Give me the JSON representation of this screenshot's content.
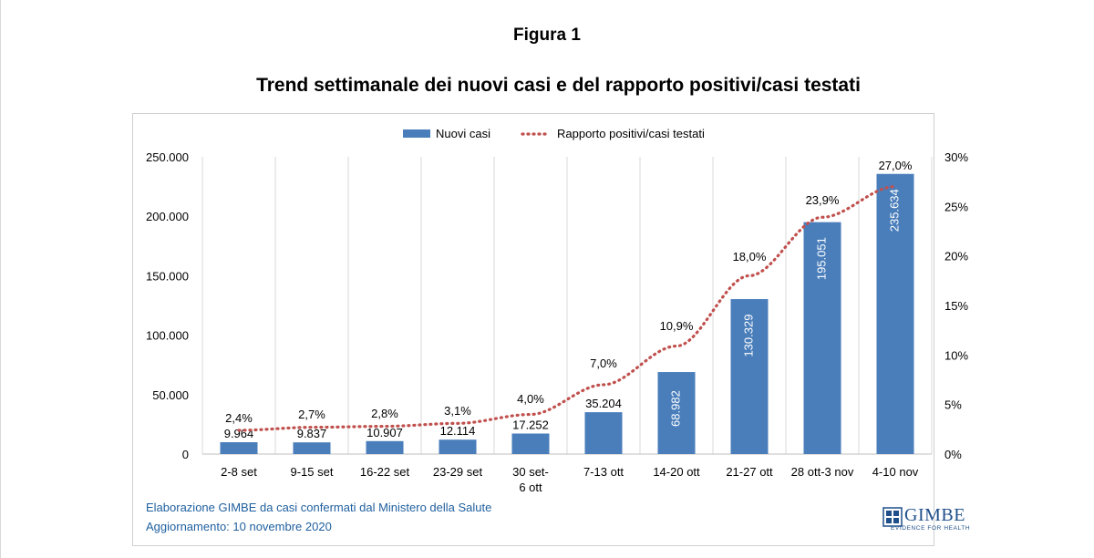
{
  "header": {
    "figure_label": "Figura 1",
    "title": "Trend settimanale dei nuovi casi e del rapporto positivi/casi testati"
  },
  "footer": {
    "source": "Elaborazione GIMBE da casi confermati dal Ministero della Salute",
    "updated": "Aggiornamento: 10 novembre 2020"
  },
  "logo": {
    "name": "GIMBE",
    "tagline": "EVIDENCE FOR HEALTH",
    "color": "#1f4f8a"
  },
  "chart_data": {
    "type": "bar",
    "categories": [
      "2-8 set",
      "9-15 set",
      "16-22 set",
      "23-29 set",
      "30 set-\n6 ott",
      "7-13 ott",
      "14-20 ott",
      "21-27 ott",
      "28 ott-3 nov",
      "4-10 nov"
    ],
    "series": [
      {
        "name": "Nuovi casi",
        "kind": "bar",
        "axis": "left",
        "color": "#4a7ebb",
        "values": [
          9964,
          9837,
          10907,
          12114,
          17252,
          35204,
          68982,
          130329,
          195051,
          235634
        ],
        "labels": [
          "9.964",
          "9.837",
          "10.907",
          "12.114",
          "17.252",
          "35.204",
          "68.982",
          "130.329",
          "195.051",
          "235.634"
        ]
      },
      {
        "name": "Rapporto positivi/casi testati",
        "kind": "line",
        "style": "dotted",
        "axis": "right",
        "color": "#c0504d",
        "values": [
          2.4,
          2.7,
          2.8,
          3.1,
          4.0,
          7.0,
          10.9,
          18.0,
          23.9,
          27.0
        ],
        "labels": [
          "2,4%",
          "2,7%",
          "2,8%",
          "3,1%",
          "4,0%",
          "7,0%",
          "10,9%",
          "18,0%",
          "23,9%",
          "27,0%"
        ]
      }
    ],
    "y_left": {
      "min": 0,
      "max": 250000,
      "ticks": [
        "0",
        "50.000",
        "100.000",
        "150.000",
        "200.000",
        "250.000"
      ]
    },
    "y_right": {
      "min": 0,
      "max": 30,
      "ticks": [
        "0%",
        "5%",
        "10%",
        "15%",
        "20%",
        "25%",
        "30%"
      ]
    },
    "grid": "vertical",
    "legend_position": "top"
  }
}
